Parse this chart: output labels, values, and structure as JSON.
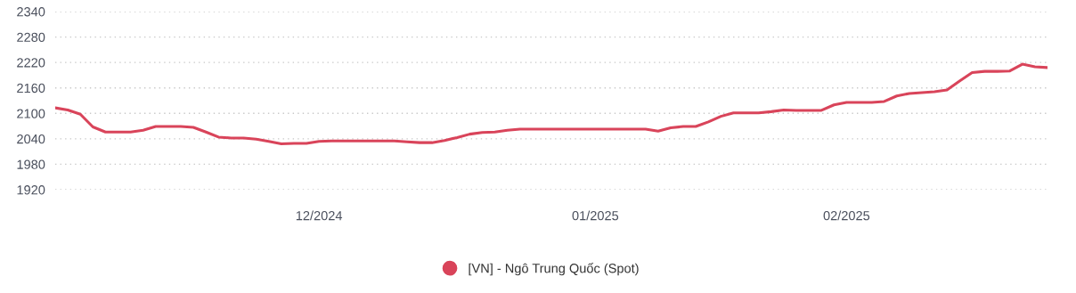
{
  "chart_data": {
    "type": "line",
    "categories": [
      null,
      null,
      null,
      null,
      null,
      null,
      null,
      null,
      null,
      null,
      null,
      null,
      null,
      null,
      null,
      null,
      null,
      null,
      null,
      null,
      null,
      "12/2024",
      null,
      null,
      null,
      null,
      null,
      null,
      null,
      null,
      null,
      null,
      null,
      null,
      null,
      null,
      null,
      null,
      null,
      null,
      null,
      null,
      null,
      "01/2025",
      null,
      null,
      null,
      null,
      null,
      null,
      null,
      null,
      null,
      null,
      null,
      null,
      null,
      null,
      null,
      null,
      null,
      null,
      null,
      "02/2025",
      null,
      null,
      null,
      null,
      null,
      null,
      null,
      null,
      null,
      null,
      null,
      null,
      null,
      null,
      null,
      null
    ],
    "series": [
      {
        "name": "[VN] - Ngô Trung Quốc (Spot)",
        "color": "#d9445a",
        "values": [
          2113,
          2108,
          2098,
          2068,
          2056,
          2056,
          2056,
          2060,
          2069,
          2069,
          2069,
          2067,
          2056,
          2044,
          2042,
          2042,
          2039,
          2034,
          2028,
          2029,
          2029,
          2034,
          2035,
          2035,
          2035,
          2035,
          2035,
          2035,
          2033,
          2031,
          2031,
          2036,
          2043,
          2051,
          2055,
          2056,
          2060,
          2063,
          2063,
          2063,
          2063,
          2063,
          2063,
          2063,
          2063,
          2063,
          2063,
          2063,
          2058,
          2066,
          2069,
          2069,
          2080,
          2093,
          2101,
          2101,
          2101,
          2104,
          2108,
          2107,
          2107,
          2107,
          2120,
          2126,
          2126,
          2126,
          2128,
          2141,
          2147,
          2149,
          2151,
          2155,
          2176,
          2196,
          2199,
          2199,
          2200,
          2216,
          2210,
          2208
        ]
      }
    ],
    "ylim": [
      1920,
      2340
    ],
    "yticks": [
      1920,
      1980,
      2040,
      2100,
      2160,
      2220,
      2280,
      2340
    ],
    "grid": "y",
    "legend": "bottom",
    "line_style": "solid"
  }
}
